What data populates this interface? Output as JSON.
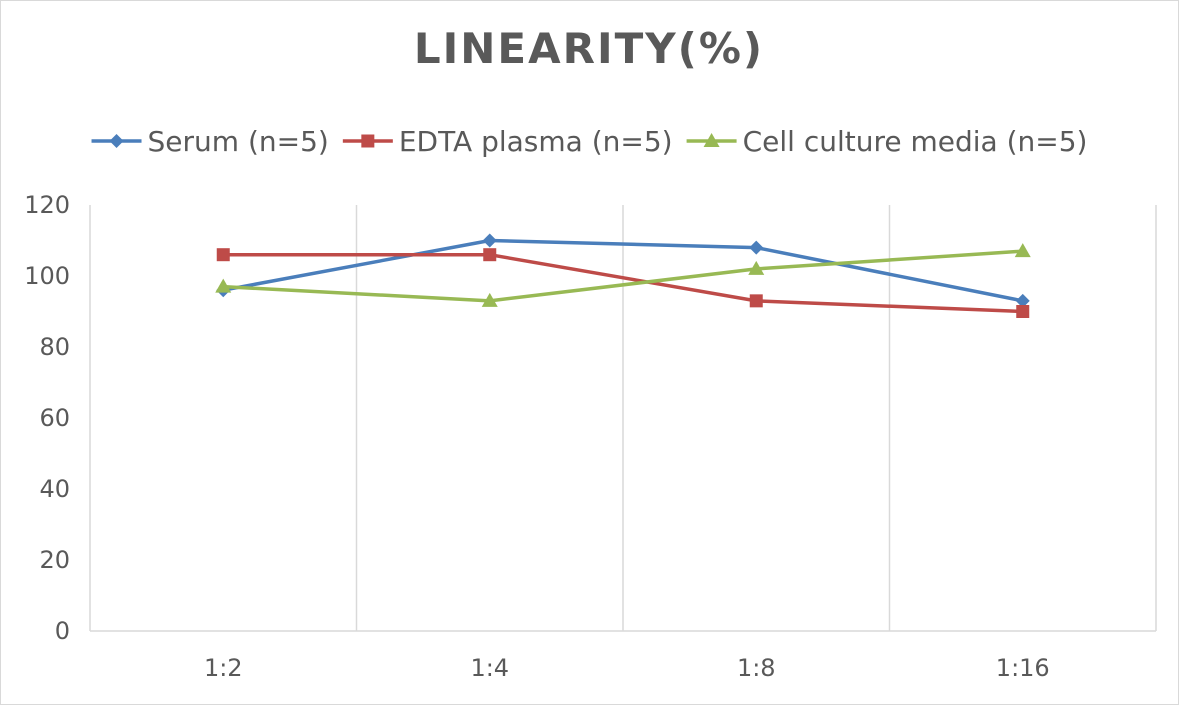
{
  "chart_data": {
    "type": "line",
    "title": "LINEARITY(%)",
    "categories": [
      "1:2",
      "1:4",
      "1:8",
      "1:16"
    ],
    "ylim": [
      0,
      120
    ],
    "yticks": [
      0,
      20,
      40,
      60,
      80,
      100,
      120
    ],
    "grid": "vertical lines between categories",
    "legend_position": "top",
    "series": [
      {
        "name": "Serum (n=5)",
        "values": [
          96,
          110,
          108,
          93
        ],
        "color": "#4a7ebb",
        "marker": "diamond"
      },
      {
        "name": "EDTA plasma (n=5)",
        "values": [
          106,
          106,
          93,
          90
        ],
        "color": "#be4b48",
        "marker": "square"
      },
      {
        "name": "Cell culture media (n=5)",
        "values": [
          97,
          93,
          102,
          107
        ],
        "color": "#98b954",
        "marker": "triangle"
      }
    ]
  }
}
